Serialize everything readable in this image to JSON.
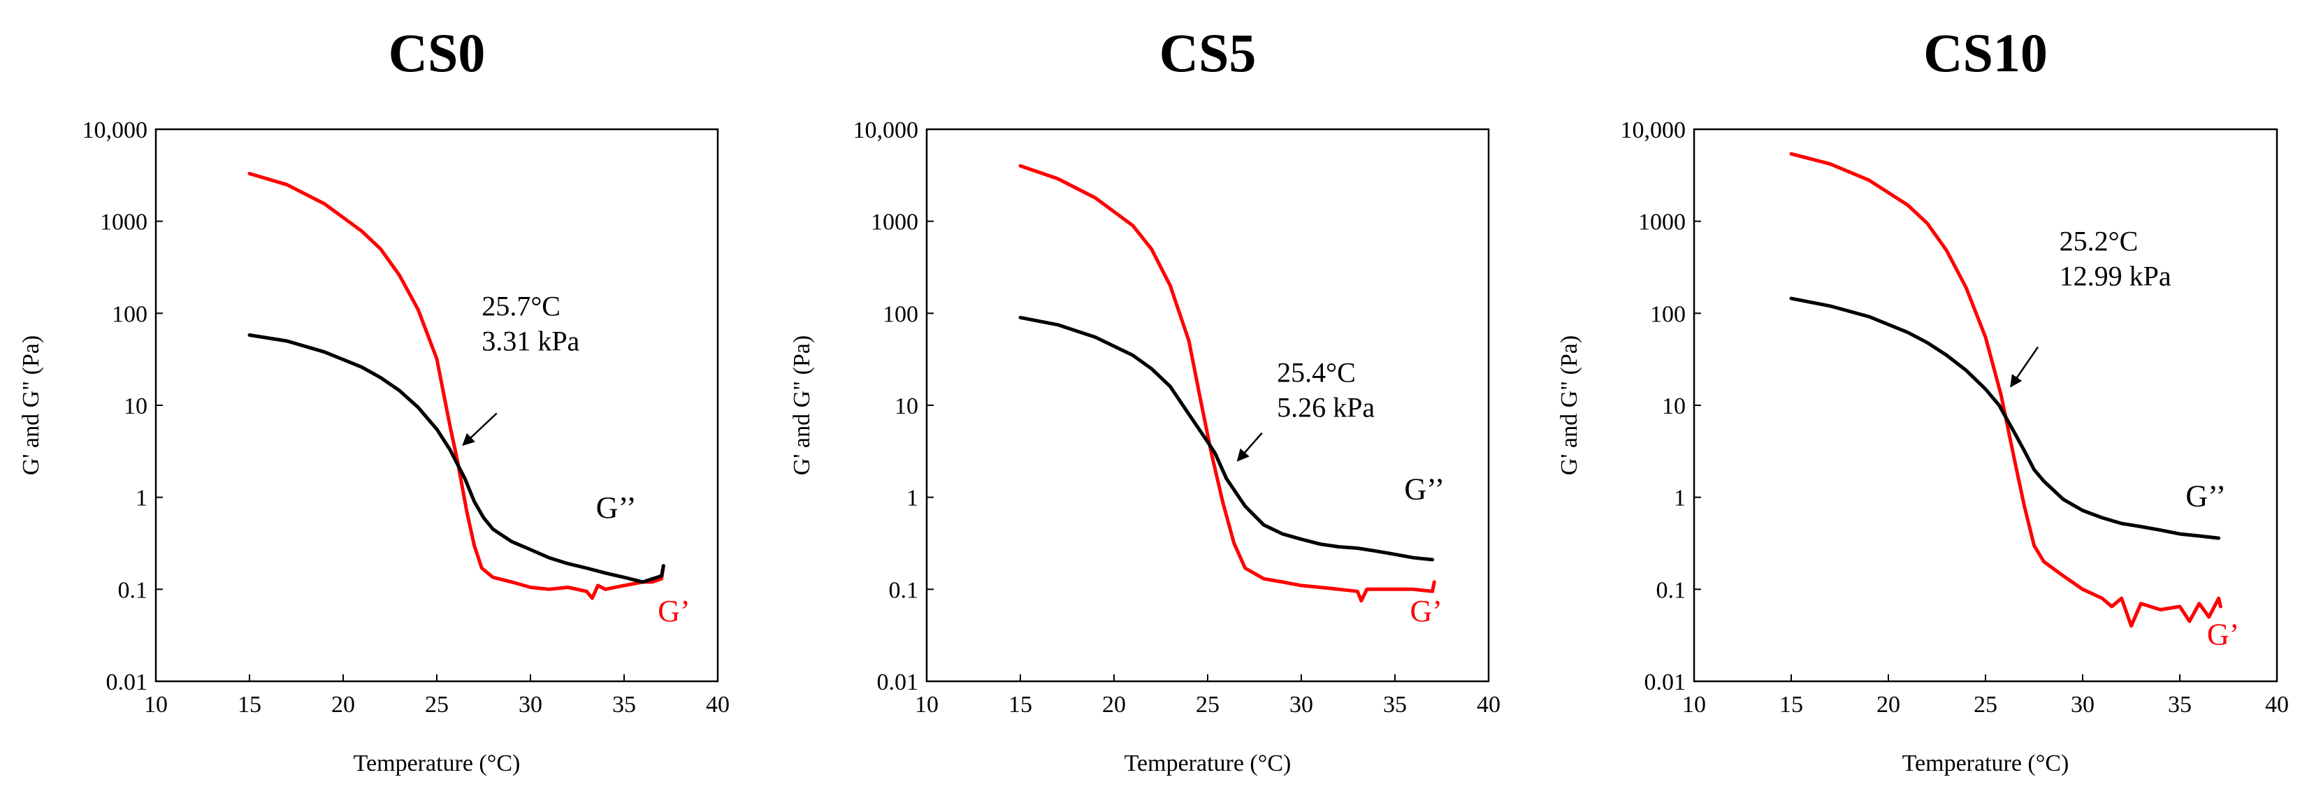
{
  "chart_data": [
    {
      "type": "line",
      "title": "CS0",
      "xlabel": "Temperature (°C)",
      "ylabel": "G' and G\" (Pa)",
      "xlim": [
        10,
        40
      ],
      "ylim": [
        0.01,
        10000
      ],
      "yscale": "log",
      "xticks": [
        "10",
        "15",
        "20",
        "25",
        "30",
        "35",
        "40"
      ],
      "yticks": [
        "0.01",
        "0.1",
        "1",
        "10",
        "100",
        "1000",
        "10,000"
      ],
      "series": [
        {
          "name": "G'",
          "label": "G’",
          "color": "#ff0000",
          "points": [
            [
              15,
              3300
            ],
            [
              17,
              2500
            ],
            [
              19,
              1550
            ],
            [
              21,
              780
            ],
            [
              22,
              500
            ],
            [
              23,
              260
            ],
            [
              24,
              110
            ],
            [
              25,
              32
            ],
            [
              25.7,
              6.0
            ],
            [
              26.1,
              2.5
            ],
            [
              26.6,
              0.7
            ],
            [
              27,
              0.3
            ],
            [
              27.4,
              0.17
            ],
            [
              28,
              0.135
            ],
            [
              29,
              0.12
            ],
            [
              30,
              0.105
            ],
            [
              31,
              0.1
            ],
            [
              32,
              0.105
            ],
            [
              33,
              0.095
            ],
            [
              33.3,
              0.08
            ],
            [
              33.6,
              0.11
            ],
            [
              34,
              0.1
            ],
            [
              35,
              0.11
            ],
            [
              36,
              0.12
            ],
            [
              36.5,
              0.12
            ],
            [
              37,
              0.13
            ],
            [
              37.1,
              0.18
            ]
          ],
          "label_pos": [
            36.8,
            0.045
          ]
        },
        {
          "name": "G\"",
          "label": "G’’",
          "color": "#000000",
          "points": [
            [
              15,
              58
            ],
            [
              17,
              50
            ],
            [
              19,
              38
            ],
            [
              21,
              26
            ],
            [
              22,
              20
            ],
            [
              23,
              14.5
            ],
            [
              24,
              9.5
            ],
            [
              25,
              5.5
            ],
            [
              25.7,
              3.3
            ],
            [
              26.5,
              1.6
            ],
            [
              27,
              0.9
            ],
            [
              27.5,
              0.6
            ],
            [
              28,
              0.45
            ],
            [
              29,
              0.33
            ],
            [
              30,
              0.27
            ],
            [
              31,
              0.22
            ],
            [
              32,
              0.19
            ],
            [
              33,
              0.17
            ],
            [
              34,
              0.15
            ],
            [
              35,
              0.135
            ],
            [
              36,
              0.12
            ],
            [
              37,
              0.14
            ],
            [
              37.1,
              0.18
            ]
          ],
          "label_pos": [
            33.5,
            0.6
          ]
        }
      ],
      "annotation": {
        "lines": [
          "25.7°C",
          "3.31 kPa"
        ],
        "text_pos": [
          27.4,
          95
        ],
        "arrow_from": [
          28.2,
          8.2
        ],
        "arrow_to": [
          26.4,
          3.7
        ]
      }
    },
    {
      "type": "line",
      "title": "CS5",
      "xlabel": "Temperature (°C)",
      "ylabel": "G' and G\" (Pa)",
      "xlim": [
        10,
        40
      ],
      "ylim": [
        0.01,
        10000
      ],
      "yscale": "log",
      "xticks": [
        "10",
        "15",
        "20",
        "25",
        "30",
        "35",
        "40"
      ],
      "yticks": [
        "0.01",
        "0.1",
        "1",
        "10",
        "100",
        "1000",
        "10,000"
      ],
      "series": [
        {
          "name": "G'",
          "label": "G’",
          "color": "#ff0000",
          "points": [
            [
              15,
              4000
            ],
            [
              17,
              2900
            ],
            [
              19,
              1800
            ],
            [
              21,
              900
            ],
            [
              22,
              500
            ],
            [
              23,
              200
            ],
            [
              24,
              50
            ],
            [
              24.6,
              12
            ],
            [
              25.2,
              3.0
            ],
            [
              25.8,
              0.9
            ],
            [
              26.4,
              0.32
            ],
            [
              27,
              0.17
            ],
            [
              28,
              0.13
            ],
            [
              29,
              0.12
            ],
            [
              30,
              0.11
            ],
            [
              31,
              0.105
            ],
            [
              32,
              0.1
            ],
            [
              33,
              0.095
            ],
            [
              33.2,
              0.075
            ],
            [
              33.5,
              0.1
            ],
            [
              34,
              0.1
            ],
            [
              35,
              0.1
            ],
            [
              36,
              0.1
            ],
            [
              37,
              0.095
            ],
            [
              37.1,
              0.12
            ]
          ],
          "label_pos": [
            35.8,
            0.045
          ]
        },
        {
          "name": "G\"",
          "label": "G’’",
          "color": "#000000",
          "points": [
            [
              15,
              90
            ],
            [
              17,
              75
            ],
            [
              19,
              55
            ],
            [
              21,
              35
            ],
            [
              22,
              25
            ],
            [
              23,
              16
            ],
            [
              24,
              8
            ],
            [
              25,
              4.0
            ],
            [
              25.4,
              3.0
            ],
            [
              26,
              1.6
            ],
            [
              27,
              0.8
            ],
            [
              28,
              0.5
            ],
            [
              29,
              0.4
            ],
            [
              30,
              0.35
            ],
            [
              31,
              0.31
            ],
            [
              32,
              0.29
            ],
            [
              33,
              0.28
            ],
            [
              34,
              0.26
            ],
            [
              35,
              0.24
            ],
            [
              36,
              0.22
            ],
            [
              37,
              0.21
            ]
          ],
          "label_pos": [
            35.5,
            0.95
          ]
        }
      ],
      "annotation": {
        "lines": [
          "25.4°C",
          "5.26 kPa"
        ],
        "text_pos": [
          28.7,
          18
        ],
        "arrow_from": [
          27.9,
          5.0
        ],
        "arrow_to": [
          26.6,
          2.5
        ]
      }
    },
    {
      "type": "line",
      "title": "CS10",
      "xlabel": "Temperature (°C)",
      "ylabel": "G' and G\" (Pa)",
      "xlim": [
        10,
        40
      ],
      "ylim": [
        0.01,
        10000
      ],
      "yscale": "log",
      "xticks": [
        "10",
        "15",
        "20",
        "25",
        "30",
        "35",
        "40"
      ],
      "yticks": [
        "0.01",
        "0.1",
        "1",
        "10",
        "100",
        "1000",
        "10,000"
      ],
      "series": [
        {
          "name": "G'",
          "label": "G’",
          "color": "#ff0000",
          "points": [
            [
              15,
              5400
            ],
            [
              17,
              4200
            ],
            [
              19,
              2800
            ],
            [
              21,
              1500
            ],
            [
              22,
              950
            ],
            [
              23,
              480
            ],
            [
              24,
              190
            ],
            [
              25,
              55
            ],
            [
              25.8,
              13
            ],
            [
              26.5,
              2.5
            ],
            [
              27,
              0.8
            ],
            [
              27.5,
              0.3
            ],
            [
              28,
              0.2
            ],
            [
              29,
              0.14
            ],
            [
              30,
              0.1
            ],
            [
              31,
              0.08
            ],
            [
              31.5,
              0.065
            ],
            [
              32,
              0.08
            ],
            [
              32.5,
              0.04
            ],
            [
              33,
              0.07
            ],
            [
              34,
              0.06
            ],
            [
              35,
              0.065
            ],
            [
              35.5,
              0.045
            ],
            [
              36,
              0.07
            ],
            [
              36.5,
              0.05
            ],
            [
              37,
              0.08
            ],
            [
              37.1,
              0.065
            ]
          ],
          "label_pos": [
            36.4,
            0.025
          ]
        },
        {
          "name": "G\"",
          "label": "G’’",
          "color": "#000000",
          "points": [
            [
              15,
              145
            ],
            [
              17,
              120
            ],
            [
              19,
              92
            ],
            [
              21,
              62
            ],
            [
              22,
              48
            ],
            [
              23,
              35
            ],
            [
              24,
              24
            ],
            [
              25,
              15
            ],
            [
              25.7,
              10
            ],
            [
              26.5,
              5
            ],
            [
              27,
              3.2
            ],
            [
              27.5,
              2
            ],
            [
              28,
              1.5
            ],
            [
              29,
              0.95
            ],
            [
              30,
              0.72
            ],
            [
              31,
              0.6
            ],
            [
              32,
              0.52
            ],
            [
              33,
              0.48
            ],
            [
              34,
              0.44
            ],
            [
              35,
              0.4
            ],
            [
              36,
              0.38
            ],
            [
              37,
              0.36
            ]
          ],
          "label_pos": [
            35.3,
            0.8
          ]
        }
      ],
      "annotation": {
        "lines": [
          "25.2°C",
          "12.99 kPa"
        ],
        "text_pos": [
          28.8,
          480
        ],
        "arrow_from": [
          27.7,
          43
        ],
        "arrow_to": [
          26.3,
          16
        ]
      }
    }
  ]
}
